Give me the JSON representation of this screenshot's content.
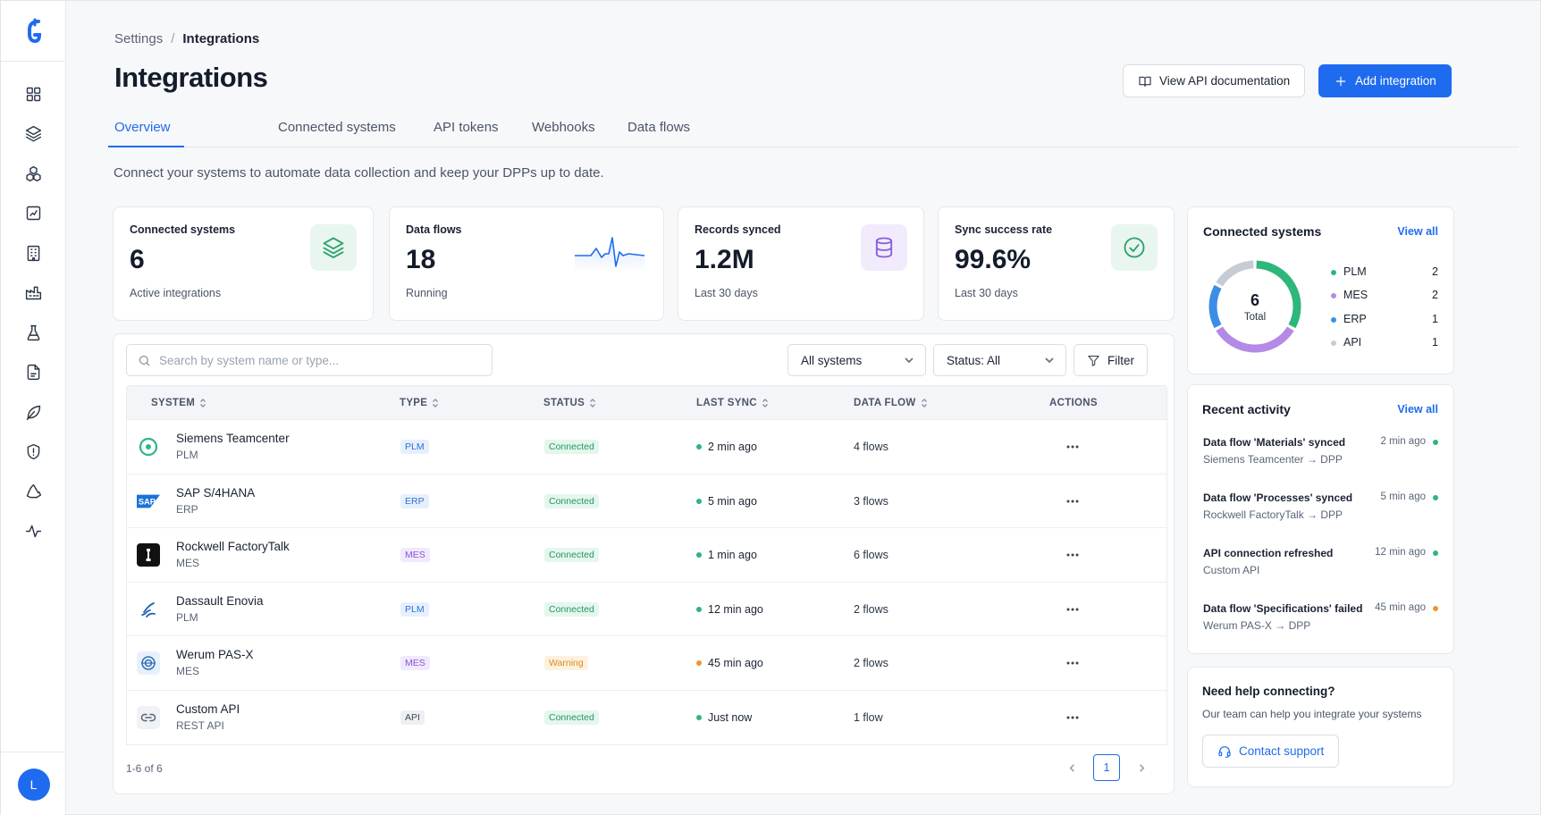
{
  "breadcrumb": {
    "parent": "Settings",
    "separator": "/",
    "current": "Integrations"
  },
  "page": {
    "title": "Integrations",
    "intro": "Connect your systems to automate data collection and keep your DPPs up to date."
  },
  "header_actions": {
    "docs_label": "View API documentation",
    "add_label": "Add integration"
  },
  "tabs": [
    {
      "label": "Overview",
      "active": true
    },
    {
      "label": "Connected systems"
    },
    {
      "label": "API tokens"
    },
    {
      "label": "Webhooks"
    },
    {
      "label": "Data flows"
    }
  ],
  "stats": [
    {
      "label": "Connected systems",
      "value": "6",
      "sub": "Active integrations",
      "icon": "layers-icon"
    },
    {
      "label": "Data flows",
      "value": "18",
      "sub": "Running",
      "icon": "pulse-sparkline"
    },
    {
      "label": "Records synced",
      "value": "1.2M",
      "sub": "Last 30 days",
      "icon": "database-icon"
    },
    {
      "label": "Sync success rate",
      "value": "99.6%",
      "sub": "Last 30 days",
      "icon": "check-circle-icon"
    }
  ],
  "table": {
    "search_placeholder": "Search by system name or type...",
    "system_filter": "All systems",
    "status_filter": "Status: All",
    "filter_label": "Filter",
    "columns": [
      "SYSTEM",
      "TYPE",
      "STATUS",
      "LAST SYNC",
      "DATA FLOW",
      "ACTIONS"
    ],
    "rows": [
      {
        "name": "Siemens Teamcenter",
        "sub": "PLM",
        "type": "PLM",
        "status": "Connected",
        "last_sync": "2 min ago",
        "flows": "4 flows",
        "logo": "siemens-logo"
      },
      {
        "name": "SAP S/4HANA",
        "sub": "ERP",
        "type": "ERP",
        "status": "Connected",
        "last_sync": "5 min ago",
        "flows": "3 flows",
        "logo": "sap-logo"
      },
      {
        "name": "Rockwell FactoryTalk",
        "sub": "MES",
        "type": "MES",
        "status": "Connected",
        "last_sync": "1 min ago",
        "flows": "6 flows",
        "logo": "rockwell-logo"
      },
      {
        "name": "Dassault Enovia",
        "sub": "PLM",
        "type": "PLM",
        "status": "Connected",
        "last_sync": "12 min ago",
        "flows": "2 flows",
        "logo": "dassault-logo"
      },
      {
        "name": "Werum PAS-X",
        "sub": "MES",
        "type": "MES",
        "status": "Warning",
        "last_sync": "45 min ago",
        "flows": "2 flows",
        "logo": "werum-logo"
      },
      {
        "name": "Custom API",
        "sub": "REST API",
        "type": "API",
        "status": "Connected",
        "last_sync": "Just now",
        "flows": "1 flow",
        "logo": "api-link-icon"
      }
    ],
    "pagination": {
      "summary": "1-6 of 6",
      "current_page": "1"
    }
  },
  "connected_systems": {
    "title": "Connected systems",
    "view_all": "View all",
    "total_value": "6",
    "total_label": "Total",
    "items": [
      {
        "name": "PLM",
        "value": 2,
        "color": "#2fb67a"
      },
      {
        "name": "MES",
        "value": 2,
        "color": "#b48ae6"
      },
      {
        "name": "ERP",
        "value": 1,
        "color": "#3a8ee6"
      },
      {
        "name": "API",
        "value": 1,
        "color": "#c7cbd4"
      }
    ]
  },
  "recent_activity": {
    "title": "Recent activity",
    "view_all": "View all",
    "items": [
      {
        "title": "Data flow 'Materials' synced",
        "time": "2 min ago",
        "sub": "Siemens Teamcenter → DPP",
        "status_color": "#2fb67a"
      },
      {
        "title": "Data flow 'Processes' synced",
        "time": "5 min ago",
        "sub": "Rockwell FactoryTalk → DPP",
        "status_color": "#2fb67a"
      },
      {
        "title": "API connection refreshed",
        "time": "12 min ago",
        "sub": "Custom API",
        "status_color": "#2fb67a"
      },
      {
        "title": "Data flow 'Specifications' failed",
        "time": "45 min ago",
        "sub": "Werum PAS-X → DPP",
        "status_color": "#f0962f"
      }
    ]
  },
  "help": {
    "title": "Need help connecting?",
    "text": "Our team can help you integrate your systems",
    "button": "Contact support"
  },
  "user": {
    "initial": "L"
  },
  "colors": {
    "accent": "#1f6bf0",
    "success": "#2fb67a",
    "warning": "#f0962f"
  }
}
